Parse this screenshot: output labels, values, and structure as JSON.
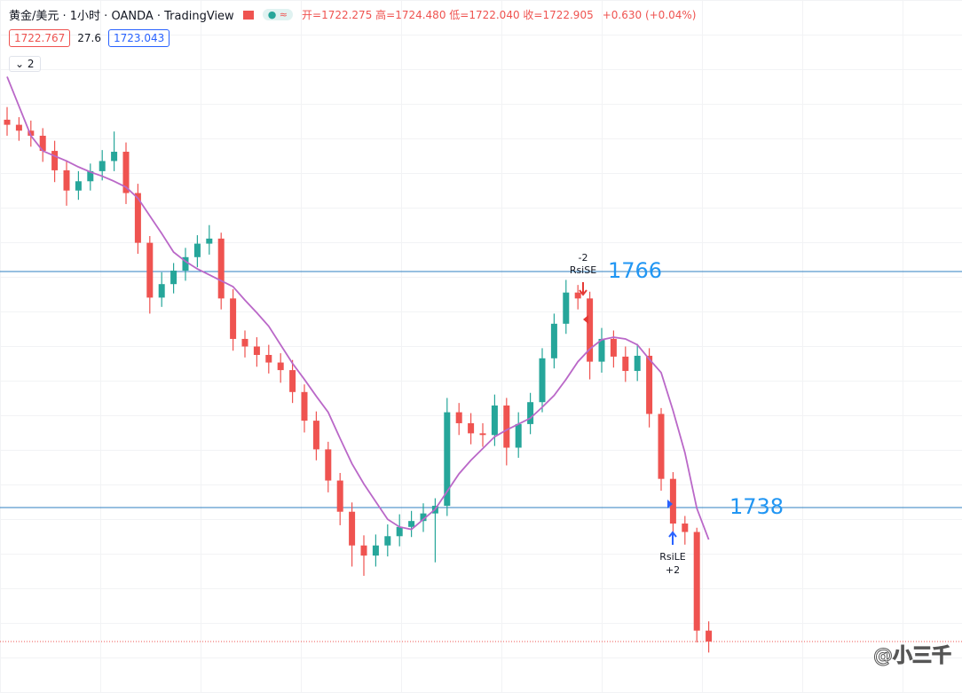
{
  "header": {
    "symbol": "黄金/美元 · 1小时 · OANDA · TradingView",
    "ohlc": "开=1722.275 高=1724.480 低=1722.040 收=1722.905",
    "change": "+0.630 (+0.04%)",
    "bid": "1722.767",
    "spread": "27.6",
    "ask": "1723.043",
    "indicators": "2"
  },
  "chart_data": {
    "type": "candlestick",
    "ylim": [
      1716.0,
      1798.2
    ],
    "up_color": "#26a69a",
    "down_color": "#ef5350",
    "open": [
      1784.0,
      1783.4,
      1782.7,
      1782.1,
      1780.3,
      1778.0,
      1775.6,
      1776.7,
      1777.9,
      1779.1,
      1780.2,
      1775.3,
      1769.4,
      1762.9,
      1764.5,
      1766.1,
      1767.7,
      1769.3,
      1769.9,
      1762.8,
      1758.0,
      1757.1,
      1756.1,
      1755.2,
      1754.3,
      1751.7,
      1748.3,
      1744.9,
      1741.2,
      1737.5,
      1733.5,
      1732.3,
      1733.5,
      1734.6,
      1735.7,
      1736.4,
      1737.3,
      1738.2,
      1749.3,
      1748.0,
      1746.8,
      1746.6,
      1750.1,
      1745.1,
      1747.9,
      1750.5,
      1755.7,
      1759.8,
      1763.5,
      1762.8,
      1755.3,
      1758.0,
      1755.9,
      1754.2,
      1756.0,
      1749.1,
      1741.4,
      1736.1,
      1735.1,
      1723.4
    ],
    "high": [
      1785.5,
      1784.3,
      1783.9,
      1783.0,
      1781.5,
      1779.2,
      1777.9,
      1778.8,
      1780.4,
      1782.6,
      1781.3,
      1776.4,
      1770.2,
      1765.9,
      1767.0,
      1768.8,
      1770.3,
      1771.5,
      1770.6,
      1763.9,
      1759.0,
      1758.2,
      1757.3,
      1756.3,
      1755.5,
      1752.6,
      1749.4,
      1745.8,
      1742.1,
      1738.6,
      1734.7,
      1734.8,
      1736.0,
      1737.2,
      1737.6,
      1738.5,
      1739.1,
      1751.0,
      1750.4,
      1749.2,
      1748.0,
      1751.4,
      1751.0,
      1749.3,
      1751.6,
      1756.9,
      1761.0,
      1765.0,
      1764.4,
      1763.6,
      1759.3,
      1759.0,
      1757.1,
      1757.4,
      1756.9,
      1749.8,
      1742.2,
      1737.0,
      1735.6,
      1724.5
    ],
    "low": [
      1782.1,
      1781.5,
      1780.8,
      1779.0,
      1776.6,
      1773.8,
      1774.5,
      1775.6,
      1776.8,
      1777.9,
      1774.0,
      1768.1,
      1761.0,
      1761.8,
      1763.4,
      1764.9,
      1766.5,
      1768.0,
      1761.5,
      1756.6,
      1755.8,
      1754.7,
      1753.9,
      1752.8,
      1750.4,
      1746.9,
      1743.6,
      1739.8,
      1735.9,
      1731.0,
      1729.9,
      1731.0,
      1732.2,
      1733.4,
      1734.5,
      1735.1,
      1731.5,
      1737.0,
      1746.6,
      1745.5,
      1745.2,
      1745.3,
      1743.0,
      1743.9,
      1746.7,
      1749.3,
      1754.5,
      1758.6,
      1761.5,
      1753.2,
      1754.0,
      1754.6,
      1752.9,
      1753.0,
      1747.5,
      1740.0,
      1734.8,
      1733.6,
      1722.0,
      1720.8
    ],
    "close": [
      1783.4,
      1782.7,
      1782.1,
      1780.3,
      1778.0,
      1775.6,
      1776.7,
      1777.9,
      1779.1,
      1780.2,
      1775.3,
      1769.4,
      1762.9,
      1764.5,
      1766.1,
      1767.7,
      1769.3,
      1769.9,
      1762.8,
      1758.0,
      1757.1,
      1756.1,
      1755.2,
      1754.3,
      1751.7,
      1748.3,
      1744.9,
      1741.2,
      1737.5,
      1733.5,
      1732.3,
      1733.5,
      1734.6,
      1735.7,
      1736.4,
      1737.3,
      1738.2,
      1749.3,
      1748.0,
      1746.8,
      1746.6,
      1750.1,
      1745.1,
      1747.9,
      1750.5,
      1755.7,
      1759.8,
      1763.5,
      1762.8,
      1755.3,
      1758.0,
      1755.9,
      1754.2,
      1756.0,
      1749.1,
      1741.4,
      1736.1,
      1735.1,
      1723.4,
      1722.1
    ],
    "series": [
      {
        "color": "#ba68c8",
        "values": [
          1789.1,
          1785.6,
          1782.1,
          1780.3,
          1779.7,
          1779.1,
          1778.4,
          1777.8,
          1777.3,
          1776.7,
          1776.0,
          1774.7,
          1772.6,
          1770.5,
          1768.3,
          1767.2,
          1766.3,
          1765.6,
          1764.9,
          1764.2,
          1762.6,
          1761.1,
          1759.5,
          1757.3,
          1755.1,
          1753.2,
          1751.2,
          1749.3,
          1746.2,
          1743.2,
          1740.8,
          1738.7,
          1736.6,
          1735.7,
          1735.4,
          1736.6,
          1737.8,
          1739.9,
          1742.0,
          1743.6,
          1745.0,
          1746.4,
          1747.2,
          1747.9,
          1748.6,
          1749.9,
          1751.3,
          1753.2,
          1755.3,
          1756.8,
          1757.9,
          1758.2,
          1758.0,
          1757.3,
          1755.6,
          1754.0,
          1749.5,
          1744.5,
          1737.9,
          1734.2
        ]
      }
    ],
    "levels": [
      1766,
      1738
    ],
    "level_color": "#2f7fc1",
    "signals": [
      {
        "label": "RsiSE",
        "count": "-2"
      },
      {
        "label": "RsiLE",
        "count": "+2"
      }
    ]
  },
  "watermark": "@小三千"
}
